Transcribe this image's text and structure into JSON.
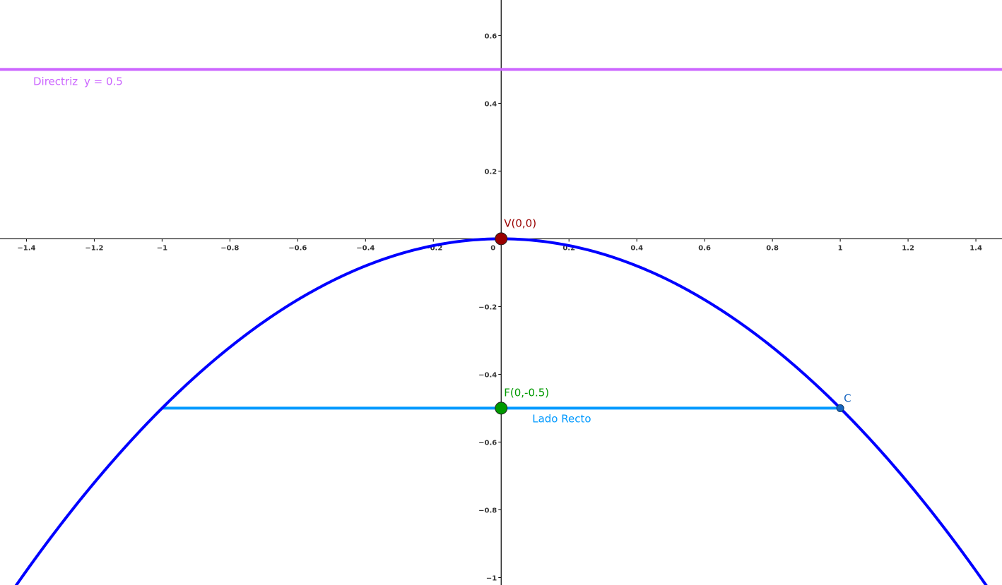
{
  "chart_data": {
    "type": "line",
    "xlim": [
      -1.478,
      1.477
    ],
    "ylim": [
      -1.022,
      0.705
    ],
    "x_ticks": [
      {
        "value": -1.4,
        "label": "−1.4"
      },
      {
        "value": -1.2,
        "label": "−1.2"
      },
      {
        "value": -1,
        "label": "−1"
      },
      {
        "value": -0.8,
        "label": "−0.8"
      },
      {
        "value": -0.6,
        "label": "−0.6"
      },
      {
        "value": -0.4,
        "label": "−0.4"
      },
      {
        "value": -0.2,
        "label": "−0.2"
      },
      {
        "value": 0.2,
        "label": "0.2"
      },
      {
        "value": 0.4,
        "label": "0.4"
      },
      {
        "value": 0.6,
        "label": "0.6"
      },
      {
        "value": 0.8,
        "label": "0.8"
      },
      {
        "value": 1,
        "label": "1"
      },
      {
        "value": 1.2,
        "label": "1.2"
      },
      {
        "value": 1.4,
        "label": "1.4"
      }
    ],
    "y_ticks": [
      {
        "value": 0.6,
        "label": "0.6"
      },
      {
        "value": 0.4,
        "label": "0.4"
      },
      {
        "value": 0.2,
        "label": "0.2"
      },
      {
        "value": -0.2,
        "label": "−0.2"
      },
      {
        "value": -0.4,
        "label": "−0.4"
      },
      {
        "value": -0.6,
        "label": "−0.6"
      },
      {
        "value": -0.8,
        "label": "−0.8"
      },
      {
        "value": -1,
        "label": "−1"
      }
    ],
    "origin_label": "0",
    "grid": false,
    "parabola": {
      "a": -0.5,
      "color": "#0000ff"
    },
    "directrix": {
      "y": 0.5,
      "color": "#cc66ff",
      "name": "Directriz",
      "equation": "y = 0.5"
    },
    "latus_rectum": {
      "x1": -1,
      "x2": 1,
      "y": -0.5,
      "color": "#0099ff",
      "label": "Lado Recto"
    },
    "points": [
      {
        "name": "vertex",
        "x": 0,
        "y": 0,
        "label": "V(0,0)",
        "color": "#990000"
      },
      {
        "name": "focus",
        "x": 0,
        "y": -0.5,
        "label": "F(0,-0.5)",
        "color": "#009900"
      },
      {
        "name": "point-c",
        "x": 1,
        "y": -0.5,
        "label": "C",
        "color": "#1565c0"
      }
    ]
  }
}
